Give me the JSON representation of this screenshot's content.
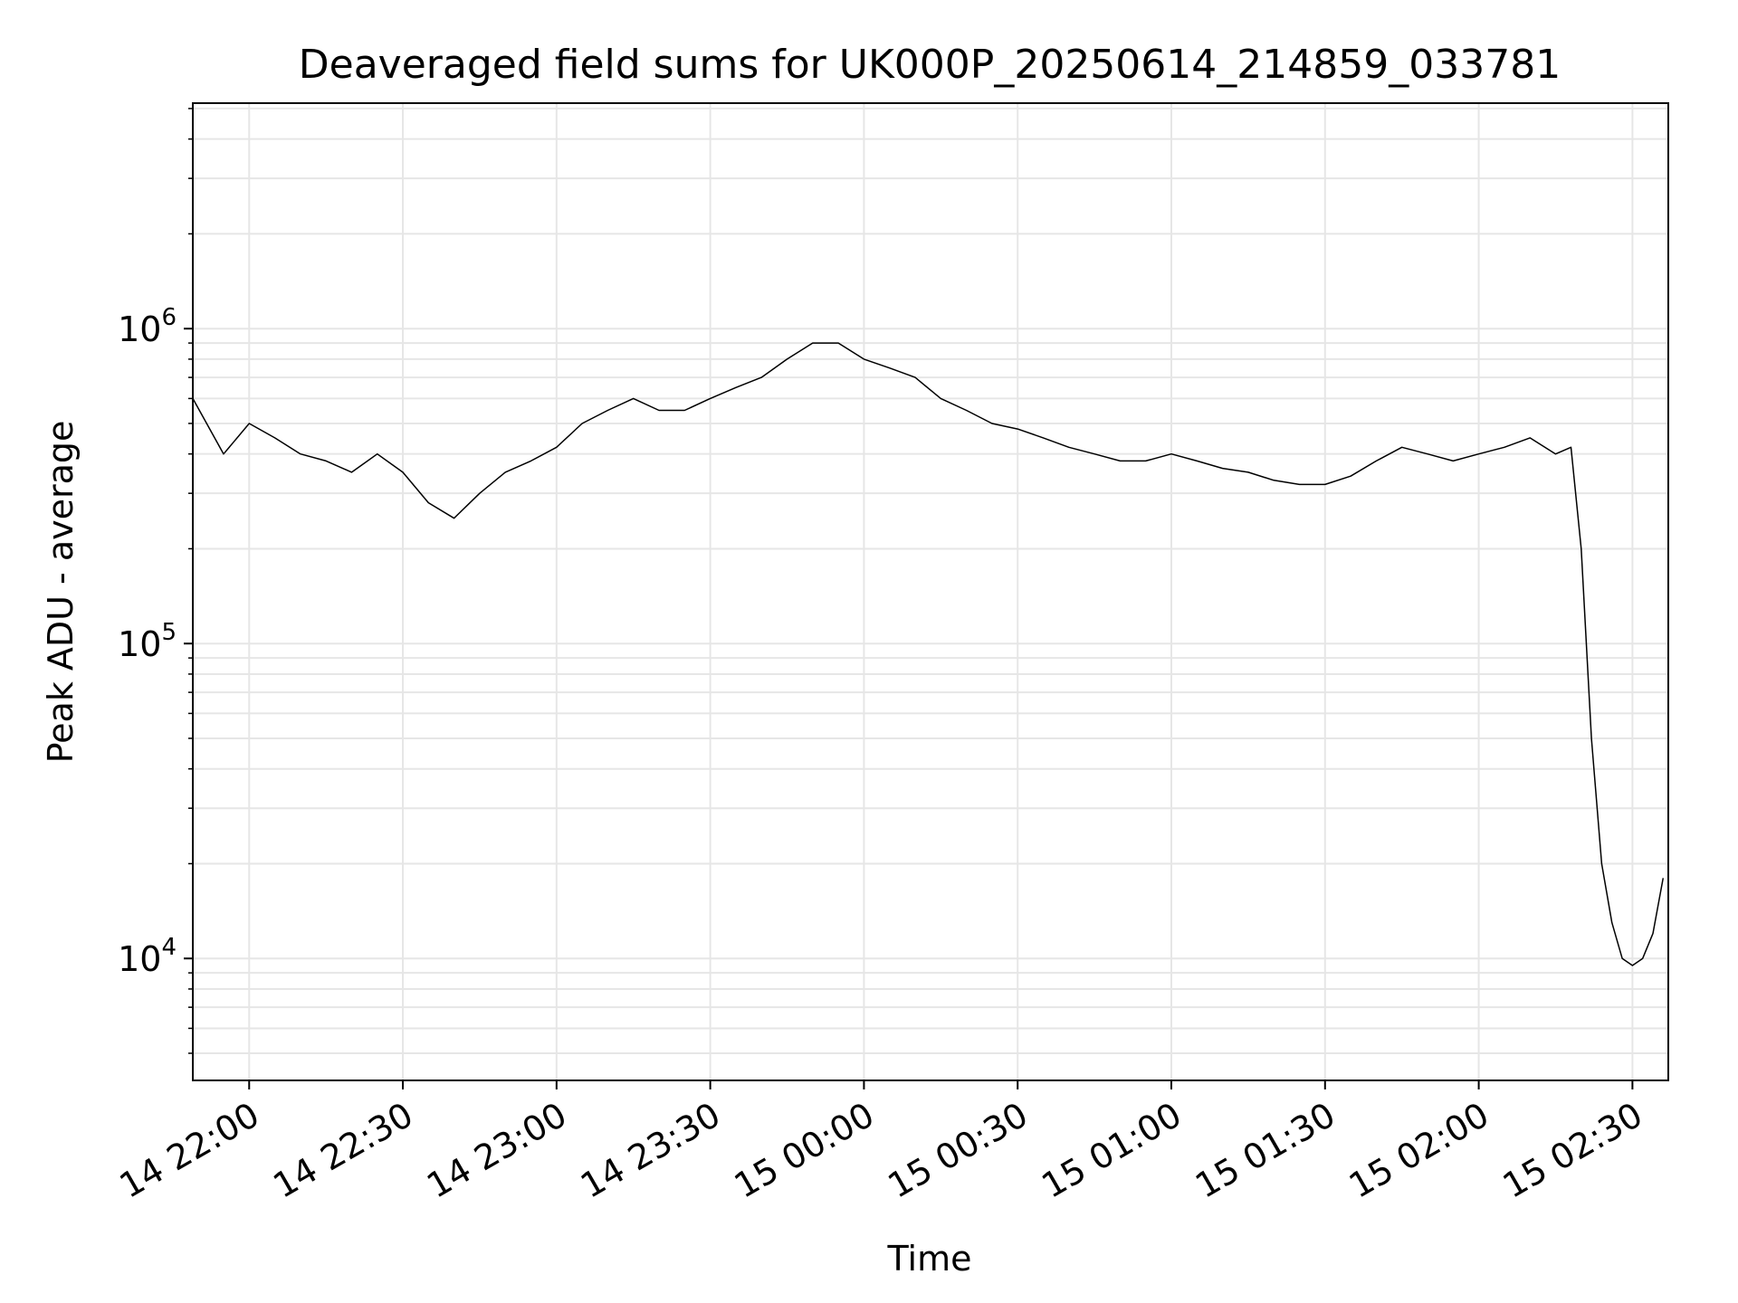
{
  "chart_data": {
    "type": "line",
    "title": "Deaveraged field sums for UK000P_20250614_214859_033781",
    "xlabel": "Time",
    "ylabel": "Peak ADU - average",
    "yscale": "log",
    "ylim": [
      4100,
      5200000
    ],
    "xlim": [
      "2025-06-14 21:49",
      "2025-06-15 02:37"
    ],
    "x_ticks": [
      "14 22:00",
      "14 22:30",
      "14 23:00",
      "14 23:30",
      "15 00:00",
      "15 00:30",
      "15 01:00",
      "15 01:30",
      "15 02:00",
      "15 02:30"
    ],
    "y_ticks": [
      {
        "label": "10",
        "exp": "4",
        "value": 10000
      },
      {
        "label": "10",
        "exp": "5",
        "value": 100000
      },
      {
        "label": "10",
        "exp": "6",
        "value": 1000000
      }
    ],
    "grid": true,
    "line_color": "#000000",
    "grid_color": "#e6e6e6",
    "series": [
      {
        "x": [
          "2025-06-14 21:49",
          "2025-06-14 21:55",
          "2025-06-14 22:00",
          "2025-06-14 22:05",
          "2025-06-14 22:10",
          "2025-06-14 22:15",
          "2025-06-14 22:20",
          "2025-06-14 22:25",
          "2025-06-14 22:30",
          "2025-06-14 22:35",
          "2025-06-14 22:40",
          "2025-06-14 22:45",
          "2025-06-14 22:50",
          "2025-06-14 22:55",
          "2025-06-14 23:00",
          "2025-06-14 23:05",
          "2025-06-14 23:10",
          "2025-06-14 23:15",
          "2025-06-14 23:20",
          "2025-06-14 23:25",
          "2025-06-14 23:30",
          "2025-06-14 23:35",
          "2025-06-14 23:40",
          "2025-06-14 23:45",
          "2025-06-14 23:50",
          "2025-06-14 23:55",
          "2025-06-15 00:00",
          "2025-06-15 00:05",
          "2025-06-15 00:10",
          "2025-06-15 00:15",
          "2025-06-15 00:20",
          "2025-06-15 00:25",
          "2025-06-15 00:30",
          "2025-06-15 00:35",
          "2025-06-15 00:40",
          "2025-06-15 00:45",
          "2025-06-15 00:50",
          "2025-06-15 00:55",
          "2025-06-15 01:00",
          "2025-06-15 01:05",
          "2025-06-15 01:10",
          "2025-06-15 01:15",
          "2025-06-15 01:20",
          "2025-06-15 01:25",
          "2025-06-15 01:30",
          "2025-06-15 01:35",
          "2025-06-15 01:40",
          "2025-06-15 01:45",
          "2025-06-15 01:50",
          "2025-06-15 01:55",
          "2025-06-15 02:00",
          "2025-06-15 02:05",
          "2025-06-15 02:10",
          "2025-06-15 02:15",
          "2025-06-15 02:18",
          "2025-06-15 02:20",
          "2025-06-15 02:22",
          "2025-06-15 02:24",
          "2025-06-15 02:26",
          "2025-06-15 02:28",
          "2025-06-15 02:30",
          "2025-06-15 02:32",
          "2025-06-15 02:34",
          "2025-06-15 02:36"
        ],
        "y": [
          600000,
          400000,
          500000,
          450000,
          400000,
          380000,
          350000,
          400000,
          350000,
          280000,
          250000,
          300000,
          350000,
          380000,
          420000,
          500000,
          550000,
          600000,
          550000,
          550000,
          600000,
          650000,
          700000,
          800000,
          900000,
          900000,
          800000,
          750000,
          700000,
          600000,
          550000,
          500000,
          480000,
          450000,
          420000,
          400000,
          380000,
          380000,
          400000,
          380000,
          360000,
          350000,
          330000,
          320000,
          320000,
          340000,
          380000,
          420000,
          400000,
          380000,
          400000,
          420000,
          450000,
          400000,
          420000,
          200000,
          50000,
          20000,
          13000,
          10000,
          9500,
          10000,
          12000,
          18000
        ]
      }
    ]
  }
}
